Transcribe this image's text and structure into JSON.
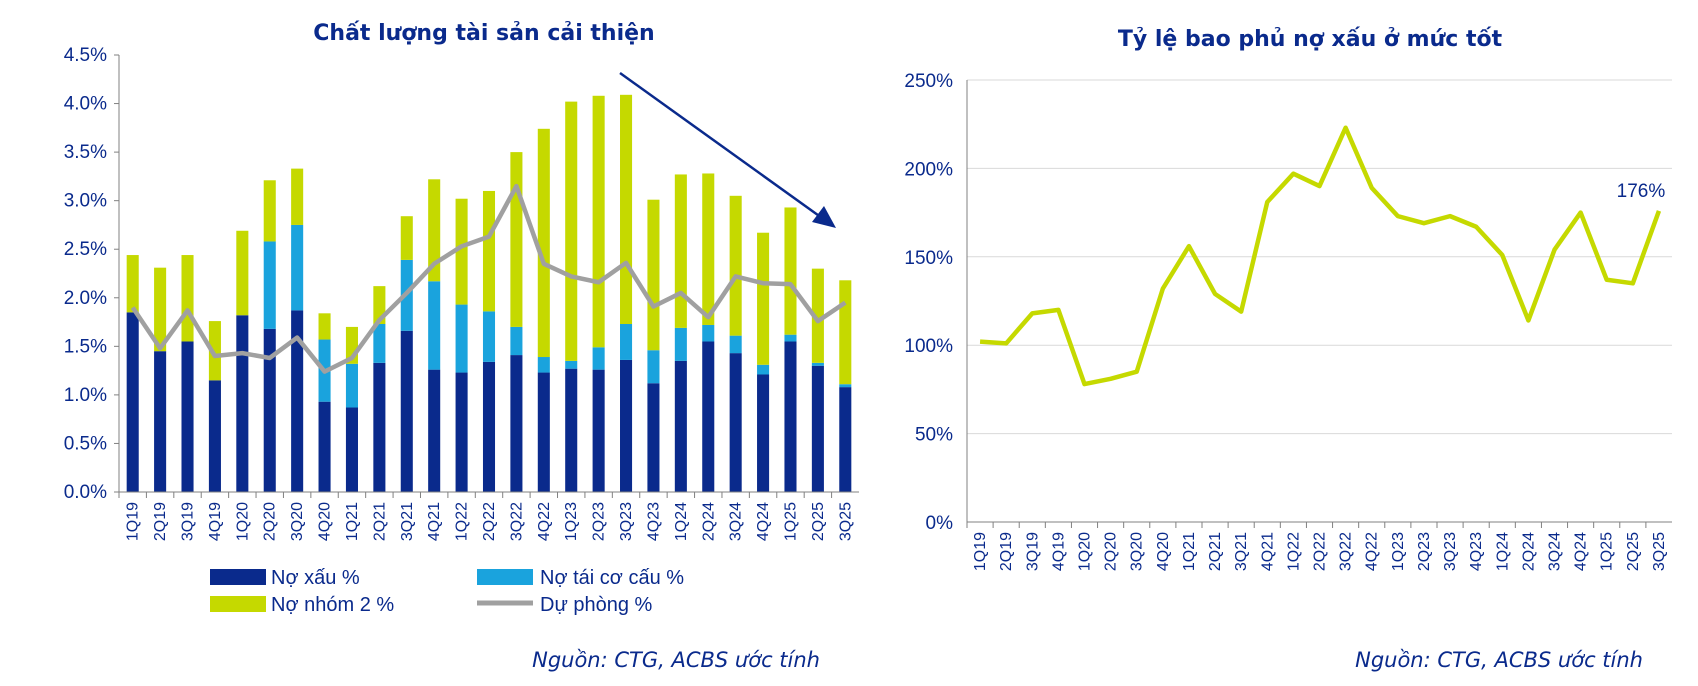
{
  "colors": {
    "npl": "#0a2a8c",
    "restructured": "#1aa3dd",
    "group2": "#c5d900",
    "provision": "#a0a0a0",
    "coverage_line": "#c5d900",
    "text": "#0a2a8c",
    "grid": "#d9d9d9",
    "arrow": "#0a2a8c"
  },
  "chart_data": [
    {
      "type": "bar",
      "stacked": true,
      "title": "Chất lượng tài sản cải thiện",
      "categories": [
        "1Q19",
        "2Q19",
        "3Q19",
        "4Q19",
        "1Q20",
        "2Q20",
        "3Q20",
        "4Q20",
        "1Q21",
        "2Q21",
        "3Q21",
        "4Q21",
        "1Q22",
        "2Q22",
        "3Q22",
        "4Q22",
        "1Q23",
        "2Q23",
        "3Q23",
        "4Q23",
        "1Q24",
        "2Q24",
        "3Q24",
        "4Q24",
        "1Q25",
        "2Q25",
        "3Q25"
      ],
      "ylim": [
        0,
        4.5
      ],
      "yticks": [
        "0.0%",
        "0.5%",
        "1.0%",
        "1.5%",
        "2.0%",
        "2.5%",
        "3.0%",
        "3.5%",
        "4.0%",
        "4.5%"
      ],
      "series": [
        {
          "name": "Nợ xấu %",
          "type": "bar",
          "color_key": "npl",
          "values": [
            1.85,
            1.45,
            1.55,
            1.15,
            1.82,
            1.68,
            1.87,
            0.93,
            0.87,
            1.33,
            1.66,
            1.26,
            1.23,
            1.34,
            1.41,
            1.23,
            1.27,
            1.26,
            1.36,
            1.12,
            1.35,
            1.55,
            1.43,
            1.21,
            1.55,
            1.3,
            1.08
          ]
        },
        {
          "name": "Nợ tái cơ cấu %",
          "type": "bar",
          "color_key": "restructured",
          "values": [
            0.0,
            0.0,
            0.0,
            0.0,
            0.0,
            0.9,
            0.88,
            0.64,
            0.45,
            0.4,
            0.73,
            0.91,
            0.7,
            0.52,
            0.29,
            0.16,
            0.08,
            0.23,
            0.37,
            0.34,
            0.34,
            0.17,
            0.18,
            0.1,
            0.07,
            0.03,
            0.03
          ]
        },
        {
          "name": "Nợ nhóm 2 %",
          "type": "bar",
          "color_key": "group2",
          "values": [
            0.59,
            0.86,
            0.89,
            0.61,
            0.87,
            0.63,
            0.58,
            0.27,
            0.38,
            0.39,
            0.45,
            1.05,
            1.09,
            1.24,
            1.8,
            2.35,
            2.67,
            2.59,
            2.36,
            1.55,
            1.58,
            1.56,
            1.44,
            1.36,
            1.31,
            0.97,
            1.07
          ]
        },
        {
          "name": "Dự phòng %",
          "type": "line",
          "color_key": "provision",
          "values": [
            1.9,
            1.48,
            1.87,
            1.4,
            1.43,
            1.38,
            1.59,
            1.24,
            1.38,
            1.77,
            2.05,
            2.35,
            2.53,
            2.63,
            3.15,
            2.35,
            2.22,
            2.16,
            2.36,
            1.91,
            2.05,
            1.8,
            2.22,
            2.15,
            2.14,
            1.76,
            1.95
          ]
        }
      ],
      "legend": [
        "Nợ xấu %",
        "Nợ tái cơ cấu %",
        "Nợ nhóm 2 %",
        "Dự phòng %"
      ],
      "legend_position": "bottom",
      "annotation": "downward trend arrow from 3Q22 to 3Q25",
      "source": "Nguồn: CTG, ACBS ước tính"
    },
    {
      "type": "line",
      "title": "Tỷ lệ bao phủ nợ xấu ở mức tốt",
      "categories": [
        "1Q19",
        "2Q19",
        "3Q19",
        "4Q19",
        "1Q20",
        "2Q20",
        "3Q20",
        "4Q20",
        "1Q21",
        "2Q21",
        "3Q21",
        "4Q21",
        "1Q22",
        "2Q22",
        "3Q22",
        "4Q22",
        "1Q23",
        "2Q23",
        "3Q23",
        "4Q23",
        "1Q24",
        "2Q24",
        "3Q24",
        "4Q24",
        "1Q25",
        "2Q25",
        "3Q25"
      ],
      "ylim": [
        0,
        250
      ],
      "yticks": [
        "0%",
        "50%",
        "100%",
        "150%",
        "200%",
        "250%"
      ],
      "series": [
        {
          "name": "Tỷ lệ bao phủ nợ xấu",
          "color_key": "coverage_line",
          "values": [
            102,
            101,
            118,
            120,
            78,
            81,
            85,
            132,
            156,
            129,
            119,
            181,
            197,
            190,
            223,
            189,
            173,
            169,
            173,
            167,
            151,
            114,
            154,
            175,
            137,
            135,
            176
          ]
        }
      ],
      "data_label": "176%",
      "grid": true,
      "source": "Nguồn: CTG, ACBS ước tính"
    }
  ]
}
